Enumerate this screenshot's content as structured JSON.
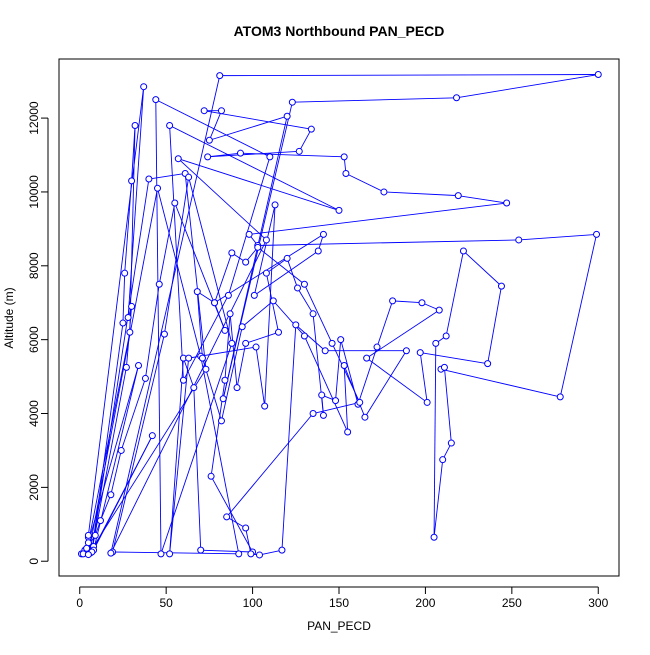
{
  "chart_data": {
    "type": "scatter",
    "title": "ATOM3 Northbound PAN_PECD",
    "xlabel": "PAN_PECD",
    "ylabel": "Altitude (m)",
    "xlim": [
      -12,
      312
    ],
    "ylim": [
      -400,
      13600
    ],
    "xticks": [
      0,
      50,
      100,
      150,
      200,
      250,
      300
    ],
    "yticks": [
      0,
      2000,
      4000,
      6000,
      8000,
      10000,
      12000
    ],
    "grid": false,
    "legend": "none",
    "connect_points": true,
    "series_color": "#0000ff",
    "series": [
      {
        "marker": "open-circle",
        "points": [
          [
            1,
            200
          ],
          [
            3,
            300
          ],
          [
            5,
            250
          ],
          [
            2,
            200
          ],
          [
            6,
            220
          ],
          [
            4,
            350
          ],
          [
            8,
            400
          ],
          [
            5,
            650
          ],
          [
            5,
            700
          ],
          [
            37,
            12850
          ],
          [
            28,
            6600
          ],
          [
            30,
            6900
          ],
          [
            27,
            5250
          ],
          [
            7,
            280
          ],
          [
            25,
            6450
          ],
          [
            26,
            7800
          ],
          [
            30,
            10300
          ],
          [
            32,
            11800
          ],
          [
            29,
            6200
          ],
          [
            5,
            500
          ],
          [
            34,
            5300
          ],
          [
            8,
            300
          ],
          [
            42,
            3400
          ],
          [
            7,
            250
          ],
          [
            40,
            10350
          ],
          [
            61,
            10500
          ],
          [
            73,
            5200
          ],
          [
            5,
            180
          ],
          [
            45,
            10100
          ],
          [
            70,
            5550
          ],
          [
            92,
            200
          ],
          [
            19,
            250
          ],
          [
            49,
            6150
          ],
          [
            63,
            10400
          ],
          [
            88,
            5900
          ],
          [
            47,
            200
          ],
          [
            44,
            12500
          ],
          [
            110,
            10950
          ],
          [
            86,
            7200
          ],
          [
            60,
            4900
          ],
          [
            52,
            11800
          ],
          [
            150,
            9500
          ],
          [
            57,
            10900
          ],
          [
            108,
            8700
          ],
          [
            18,
            220
          ],
          [
            81,
            13150
          ],
          [
            300,
            13180
          ],
          [
            218,
            12550
          ],
          [
            123,
            12430
          ],
          [
            83,
            4400
          ],
          [
            120,
            12050
          ],
          [
            75,
            11400
          ],
          [
            82,
            12200
          ],
          [
            72,
            12200
          ],
          [
            134,
            11700
          ],
          [
            127,
            11100
          ],
          [
            74,
            10950
          ],
          [
            93,
            11050
          ],
          [
            153,
            10950
          ],
          [
            154,
            10500
          ],
          [
            176,
            10000
          ],
          [
            219,
            9900
          ],
          [
            247,
            9700
          ],
          [
            98,
            8850
          ],
          [
            103,
            8550
          ],
          [
            254,
            8700
          ],
          [
            299,
            8850
          ],
          [
            278,
            4450
          ],
          [
            209,
            5200
          ],
          [
            211,
            5250
          ],
          [
            215,
            3200
          ],
          [
            210,
            2750
          ],
          [
            205,
            650
          ],
          [
            206,
            5900
          ],
          [
            212,
            6100
          ],
          [
            222,
            8400
          ],
          [
            244,
            7450
          ],
          [
            236,
            5350
          ],
          [
            197,
            5650
          ],
          [
            201,
            4300
          ],
          [
            166,
            5500
          ],
          [
            208,
            6800
          ],
          [
            198,
            7000
          ],
          [
            181,
            7050
          ],
          [
            172,
            5800
          ],
          [
            161,
            4250
          ],
          [
            151,
            6000
          ],
          [
            148,
            4350
          ],
          [
            140,
            4500
          ],
          [
            141,
            3950
          ],
          [
            135,
            6700
          ],
          [
            126,
            7400
          ],
          [
            120,
            8200
          ],
          [
            108,
            7800
          ],
          [
            115,
            6200
          ],
          [
            96,
            5900
          ],
          [
            91,
            4700
          ],
          [
            87,
            6700
          ],
          [
            84,
            4900
          ],
          [
            76,
            2300
          ],
          [
            100,
            250
          ],
          [
            70,
            300
          ],
          [
            66,
            4700
          ],
          [
            60,
            5500
          ],
          [
            52,
            200
          ],
          [
            63,
            5500
          ],
          [
            102,
            5800
          ],
          [
            107,
            4200
          ],
          [
            113,
            9650
          ],
          [
            101,
            7200
          ],
          [
            138,
            8400
          ],
          [
            141,
            8850
          ],
          [
            78,
            7000
          ],
          [
            88,
            8350
          ],
          [
            96,
            8100
          ],
          [
            103,
            8500
          ],
          [
            130,
            7500
          ],
          [
            146,
            5900
          ],
          [
            162,
            4300
          ],
          [
            135,
            4000
          ],
          [
            85,
            1200
          ],
          [
            96,
            900
          ],
          [
            99,
            200
          ],
          [
            104,
            170
          ],
          [
            117,
            300
          ],
          [
            125,
            6400
          ],
          [
            142,
            5700
          ],
          [
            189,
            5700
          ],
          [
            165,
            3900
          ],
          [
            153,
            5300
          ],
          [
            155,
            3500
          ],
          [
            130,
            6100
          ],
          [
            112,
            7050
          ],
          [
            94,
            6350
          ],
          [
            82,
            3800
          ],
          [
            71,
            5500
          ],
          [
            68,
            7300
          ],
          [
            78,
            7000
          ],
          [
            84,
            6250
          ],
          [
            55,
            9700
          ],
          [
            46,
            7500
          ],
          [
            38,
            4950
          ],
          [
            24,
            3000
          ],
          [
            18,
            1800
          ],
          [
            12,
            1100
          ],
          [
            9,
            700
          ],
          [
            4,
            350
          ]
        ]
      }
    ]
  }
}
